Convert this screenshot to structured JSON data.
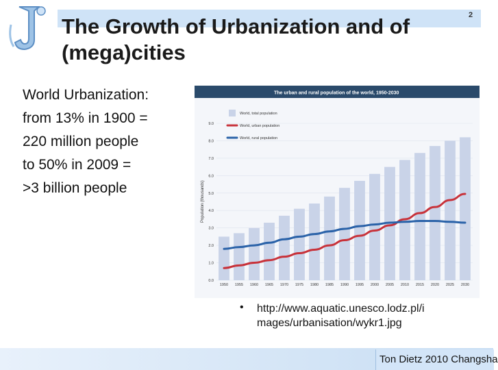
{
  "slide": {
    "number": "2",
    "title_line1": "The Growth of Urbanization and of",
    "title_line2": "(mega)cities",
    "body_lines": [
      "World Urbanization:",
      "from 13% in 1900 =",
      "220 million people",
      "to 50% in 2009 =",
      ">3 billion people"
    ],
    "bullet": "•",
    "link_line1": "http://www.aquatic.unesco.lodz.pl/i",
    "link_line2": "mages/urbanisation/wykr1.jpg",
    "footer": "Ton Dietz 2010 Changsha"
  },
  "colors": {
    "chart_header": "#2a4a6b",
    "bar": "#c9d3e8",
    "urban": "#c8323a",
    "rural": "#2a62a8",
    "title_band": "#cfe3f7"
  },
  "chart_data": {
    "type": "bar",
    "title": "The urban and rural population of the world, 1950-2030",
    "ylabel": "Population (thousands)",
    "xlabel": "",
    "ylim": [
      0,
      9.0
    ],
    "yticks": [
      "0.0",
      "1.0",
      "2.0",
      "3.0",
      "4.0",
      "5.0",
      "6.0",
      "7.0",
      "8.0",
      "9.0"
    ],
    "categories": [
      "1950",
      "1955",
      "1960",
      "1965",
      "1970",
      "1975",
      "1980",
      "1985",
      "1990",
      "1995",
      "2000",
      "2005",
      "2010",
      "2015",
      "2020",
      "2025",
      "2030"
    ],
    "legend_position": "top-left",
    "grid": true,
    "series": [
      {
        "name": "World, total population",
        "kind": "bar",
        "values": [
          2.5,
          2.7,
          3.0,
          3.3,
          3.7,
          4.1,
          4.4,
          4.8,
          5.3,
          5.7,
          6.1,
          6.5,
          6.9,
          7.3,
          7.7,
          8.0,
          8.2
        ]
      },
      {
        "name": "World, urban population",
        "kind": "line",
        "values": [
          0.7,
          0.85,
          1.0,
          1.15,
          1.35,
          1.55,
          1.75,
          2.0,
          2.3,
          2.55,
          2.85,
          3.15,
          3.5,
          3.85,
          4.2,
          4.6,
          4.95
        ]
      },
      {
        "name": "World, rural population",
        "kind": "line",
        "values": [
          1.8,
          1.9,
          2.0,
          2.15,
          2.35,
          2.5,
          2.65,
          2.8,
          2.95,
          3.1,
          3.2,
          3.3,
          3.35,
          3.4,
          3.4,
          3.35,
          3.3
        ]
      }
    ]
  }
}
